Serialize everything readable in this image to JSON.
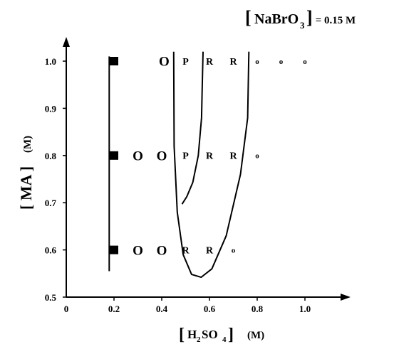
{
  "chart_data": {
    "type": "scatter",
    "title": "[NaBrO3] = 0.15 M",
    "title_parts": {
      "bracket_open": "[",
      "main": "NaBrO",
      "sub": "3",
      "bracket_close": "]",
      "rest": " = 0.15 M"
    },
    "xlabel": "[H2SO4]  (M)",
    "xlabel_parts": {
      "bracket_open": "[",
      "a": "H",
      "sub1": "2",
      "b": "SO",
      "sub2": "4",
      "bracket_close": "]",
      "unit": "(M)"
    },
    "ylabel": "[MA]  (M)",
    "ylabel_parts": {
      "text": "[ MA ]",
      "unit": "(M)"
    },
    "xlim": [
      0,
      1.15
    ],
    "ylim": [
      0.5,
      1.05
    ],
    "x_ticks": [
      {
        "value": 0,
        "label": "0"
      },
      {
        "value": 0.2,
        "label": "0.2"
      },
      {
        "value": 0.4,
        "label": "0.4"
      },
      {
        "value": 0.6,
        "label": "0.6"
      },
      {
        "value": 0.8,
        "label": "0.8"
      },
      {
        "value": 1.0,
        "label": "1.0"
      }
    ],
    "y_ticks": [
      {
        "value": 0.5,
        "label": "0.5"
      },
      {
        "value": 0.6,
        "label": "0.6"
      },
      {
        "value": 0.7,
        "label": "0.7"
      },
      {
        "value": 0.8,
        "label": "0.8"
      },
      {
        "value": 0.9,
        "label": "0.9"
      },
      {
        "value": 1.0,
        "label": "1.0"
      }
    ],
    "grid": false,
    "points": [
      {
        "x": 0.2,
        "y": 1.0,
        "marker": "square"
      },
      {
        "x": 0.41,
        "y": 1.0,
        "label": "O",
        "size": "large"
      },
      {
        "x": 0.5,
        "y": 1.0,
        "label": "P",
        "size": "medium"
      },
      {
        "x": 0.6,
        "y": 1.0,
        "label": "R",
        "size": "medium"
      },
      {
        "x": 0.7,
        "y": 1.0,
        "label": "R",
        "size": "medium"
      },
      {
        "x": 0.8,
        "y": 1.0,
        "label": "o",
        "size": "small"
      },
      {
        "x": 0.9,
        "y": 1.0,
        "label": "o",
        "size": "small"
      },
      {
        "x": 1.0,
        "y": 1.0,
        "label": "o",
        "size": "small"
      },
      {
        "x": 0.2,
        "y": 0.8,
        "marker": "square"
      },
      {
        "x": 0.3,
        "y": 0.8,
        "label": "O",
        "size": "large"
      },
      {
        "x": 0.4,
        "y": 0.8,
        "label": "O",
        "size": "large"
      },
      {
        "x": 0.5,
        "y": 0.8,
        "label": "P",
        "size": "medium"
      },
      {
        "x": 0.6,
        "y": 0.8,
        "label": "R",
        "size": "medium"
      },
      {
        "x": 0.7,
        "y": 0.8,
        "label": "R",
        "size": "medium"
      },
      {
        "x": 0.8,
        "y": 0.8,
        "label": "o",
        "size": "small"
      },
      {
        "x": 0.2,
        "y": 0.6,
        "marker": "square"
      },
      {
        "x": 0.3,
        "y": 0.6,
        "label": "O",
        "size": "large"
      },
      {
        "x": 0.4,
        "y": 0.6,
        "label": "O",
        "size": "large"
      },
      {
        "x": 0.5,
        "y": 0.6,
        "label": "R",
        "size": "medium"
      },
      {
        "x": 0.6,
        "y": 0.6,
        "label": "R",
        "size": "medium"
      },
      {
        "x": 0.7,
        "y": 0.6,
        "label": "o",
        "size": "small"
      }
    ],
    "boundaries": [
      {
        "shape": "vertical-line",
        "points": [
          [
            0.18,
            1.01
          ],
          [
            0.18,
            0.555
          ]
        ]
      },
      {
        "shape": "u-curve",
        "points": [
          [
            0.45,
            1.02
          ],
          [
            0.452,
            0.82
          ],
          [
            0.465,
            0.68
          ],
          [
            0.49,
            0.59
          ],
          [
            0.525,
            0.548
          ],
          [
            0.565,
            0.542
          ],
          [
            0.61,
            0.56
          ],
          [
            0.67,
            0.63
          ],
          [
            0.73,
            0.76
          ],
          [
            0.76,
            0.88
          ],
          [
            0.765,
            1.02
          ]
        ]
      },
      {
        "shape": "branch-curve",
        "points": [
          [
            0.485,
            0.697
          ],
          [
            0.505,
            0.713
          ],
          [
            0.53,
            0.743
          ],
          [
            0.553,
            0.8
          ],
          [
            0.567,
            0.88
          ],
          [
            0.57,
            0.95
          ],
          [
            0.573,
            1.02
          ]
        ]
      }
    ]
  }
}
